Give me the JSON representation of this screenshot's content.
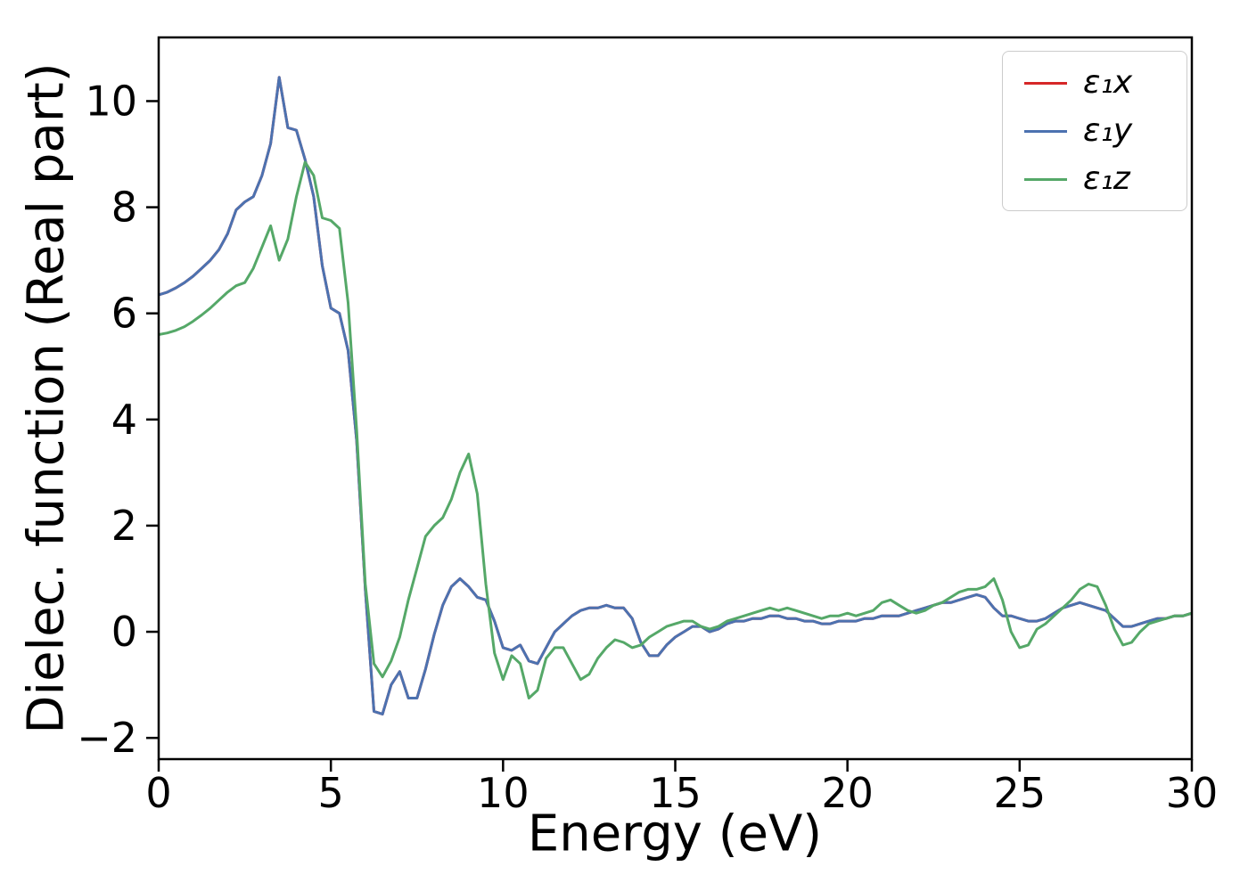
{
  "figure": {
    "background": "#ffffff"
  },
  "chart_data": {
    "type": "line",
    "title": "",
    "xlabel": "Energy (eV)",
    "ylabel": "Dielec. function (Real part)",
    "xlim": [
      0,
      30
    ],
    "ylim": [
      -2.4,
      11.2
    ],
    "x_ticks": [
      0,
      5,
      10,
      15,
      20,
      25,
      30
    ],
    "y_ticks": [
      -2,
      0,
      2,
      4,
      6,
      8,
      10
    ],
    "grid": false,
    "legend_position": "upper-right",
    "x": [
      0,
      0.25,
      0.5,
      0.75,
      1,
      1.25,
      1.5,
      1.75,
      2,
      2.25,
      2.5,
      2.75,
      3,
      3.25,
      3.5,
      3.75,
      4,
      4.25,
      4.5,
      4.75,
      5,
      5.25,
      5.5,
      5.75,
      6,
      6.25,
      6.5,
      6.75,
      7,
      7.25,
      7.5,
      7.75,
      8,
      8.25,
      8.5,
      8.75,
      9,
      9.25,
      9.5,
      9.75,
      10,
      10.25,
      10.5,
      10.75,
      11,
      11.25,
      11.5,
      11.75,
      12,
      12.25,
      12.5,
      12.75,
      13,
      13.25,
      13.5,
      13.75,
      14,
      14.25,
      14.5,
      14.75,
      15,
      15.25,
      15.5,
      15.75,
      16,
      16.25,
      16.5,
      16.75,
      17,
      17.25,
      17.5,
      17.75,
      18,
      18.25,
      18.5,
      18.75,
      19,
      19.25,
      19.5,
      19.75,
      20,
      20.25,
      20.5,
      20.75,
      21,
      21.25,
      21.5,
      21.75,
      22,
      22.25,
      22.5,
      22.75,
      23,
      23.25,
      23.5,
      23.75,
      24,
      24.25,
      24.5,
      24.75,
      25,
      25.25,
      25.5,
      25.75,
      26,
      26.25,
      26.5,
      26.75,
      27,
      27.25,
      27.5,
      27.75,
      28,
      28.25,
      28.5,
      28.75,
      29,
      29.25,
      29.5,
      29.75,
      30
    ],
    "series": [
      {
        "name": "ε₁x",
        "color": "#d62728",
        "values": [
          6.35,
          6.4,
          6.48,
          6.58,
          6.7,
          6.85,
          7.0,
          7.2,
          7.5,
          7.95,
          8.1,
          8.2,
          8.6,
          9.2,
          10.45,
          9.5,
          9.45,
          8.9,
          8.2,
          6.9,
          6.1,
          6.0,
          5.3,
          3.6,
          0.8,
          -1.5,
          -1.55,
          -1.0,
          -0.75,
          -1.25,
          -1.25,
          -0.7,
          -0.05,
          0.5,
          0.85,
          1.0,
          0.85,
          0.65,
          0.6,
          0.2,
          -0.3,
          -0.35,
          -0.25,
          -0.55,
          -0.6,
          -0.3,
          0.0,
          0.15,
          0.3,
          0.4,
          0.45,
          0.45,
          0.5,
          0.45,
          0.45,
          0.25,
          -0.2,
          -0.45,
          -0.45,
          -0.25,
          -0.1,
          0.0,
          0.1,
          0.1,
          0.0,
          0.05,
          0.15,
          0.2,
          0.2,
          0.25,
          0.25,
          0.3,
          0.3,
          0.25,
          0.25,
          0.2,
          0.2,
          0.15,
          0.15,
          0.2,
          0.2,
          0.2,
          0.25,
          0.25,
          0.3,
          0.3,
          0.3,
          0.35,
          0.4,
          0.45,
          0.5,
          0.55,
          0.55,
          0.6,
          0.65,
          0.7,
          0.65,
          0.45,
          0.3,
          0.3,
          0.25,
          0.2,
          0.2,
          0.25,
          0.35,
          0.45,
          0.5,
          0.55,
          0.5,
          0.45,
          0.4,
          0.25,
          0.1,
          0.1,
          0.15,
          0.2,
          0.25,
          0.25,
          0.3,
          0.3,
          0.35
        ]
      },
      {
        "name": "ε₁y",
        "color": "#4c72b0",
        "values": [
          6.35,
          6.4,
          6.48,
          6.58,
          6.7,
          6.85,
          7.0,
          7.2,
          7.5,
          7.95,
          8.1,
          8.2,
          8.6,
          9.2,
          10.45,
          9.5,
          9.45,
          8.9,
          8.2,
          6.9,
          6.1,
          6.0,
          5.3,
          3.6,
          0.8,
          -1.5,
          -1.55,
          -1.0,
          -0.75,
          -1.25,
          -1.25,
          -0.7,
          -0.05,
          0.5,
          0.85,
          1.0,
          0.85,
          0.65,
          0.6,
          0.2,
          -0.3,
          -0.35,
          -0.25,
          -0.55,
          -0.6,
          -0.3,
          0.0,
          0.15,
          0.3,
          0.4,
          0.45,
          0.45,
          0.5,
          0.45,
          0.45,
          0.25,
          -0.2,
          -0.45,
          -0.45,
          -0.25,
          -0.1,
          0.0,
          0.1,
          0.1,
          0.0,
          0.05,
          0.15,
          0.2,
          0.2,
          0.25,
          0.25,
          0.3,
          0.3,
          0.25,
          0.25,
          0.2,
          0.2,
          0.15,
          0.15,
          0.2,
          0.2,
          0.2,
          0.25,
          0.25,
          0.3,
          0.3,
          0.3,
          0.35,
          0.4,
          0.45,
          0.5,
          0.55,
          0.55,
          0.6,
          0.65,
          0.7,
          0.65,
          0.45,
          0.3,
          0.3,
          0.25,
          0.2,
          0.2,
          0.25,
          0.35,
          0.45,
          0.5,
          0.55,
          0.5,
          0.45,
          0.4,
          0.25,
          0.1,
          0.1,
          0.15,
          0.2,
          0.25,
          0.25,
          0.3,
          0.3,
          0.35
        ]
      },
      {
        "name": "ε₁z",
        "color": "#55a868",
        "values": [
          5.6,
          5.63,
          5.68,
          5.75,
          5.85,
          5.97,
          6.1,
          6.25,
          6.4,
          6.52,
          6.58,
          6.85,
          7.25,
          7.65,
          7.0,
          7.4,
          8.2,
          8.85,
          8.6,
          7.8,
          7.75,
          7.6,
          6.2,
          3.8,
          0.9,
          -0.6,
          -0.85,
          -0.55,
          -0.1,
          0.6,
          1.2,
          1.8,
          2.0,
          2.15,
          2.5,
          3.0,
          3.35,
          2.6,
          0.9,
          -0.4,
          -0.9,
          -0.45,
          -0.6,
          -1.25,
          -1.1,
          -0.5,
          -0.3,
          -0.3,
          -0.6,
          -0.9,
          -0.8,
          -0.5,
          -0.3,
          -0.15,
          -0.2,
          -0.3,
          -0.25,
          -0.1,
          0.0,
          0.1,
          0.15,
          0.2,
          0.2,
          0.1,
          0.05,
          0.1,
          0.2,
          0.25,
          0.3,
          0.35,
          0.4,
          0.45,
          0.4,
          0.45,
          0.4,
          0.35,
          0.3,
          0.25,
          0.3,
          0.3,
          0.35,
          0.3,
          0.35,
          0.4,
          0.55,
          0.6,
          0.5,
          0.4,
          0.35,
          0.4,
          0.5,
          0.55,
          0.65,
          0.75,
          0.8,
          0.8,
          0.85,
          1.0,
          0.6,
          0.0,
          -0.3,
          -0.25,
          0.05,
          0.15,
          0.3,
          0.45,
          0.6,
          0.8,
          0.9,
          0.85,
          0.5,
          0.05,
          -0.25,
          -0.2,
          0.0,
          0.15,
          0.2,
          0.25,
          0.3,
          0.3,
          0.35
        ]
      }
    ]
  }
}
